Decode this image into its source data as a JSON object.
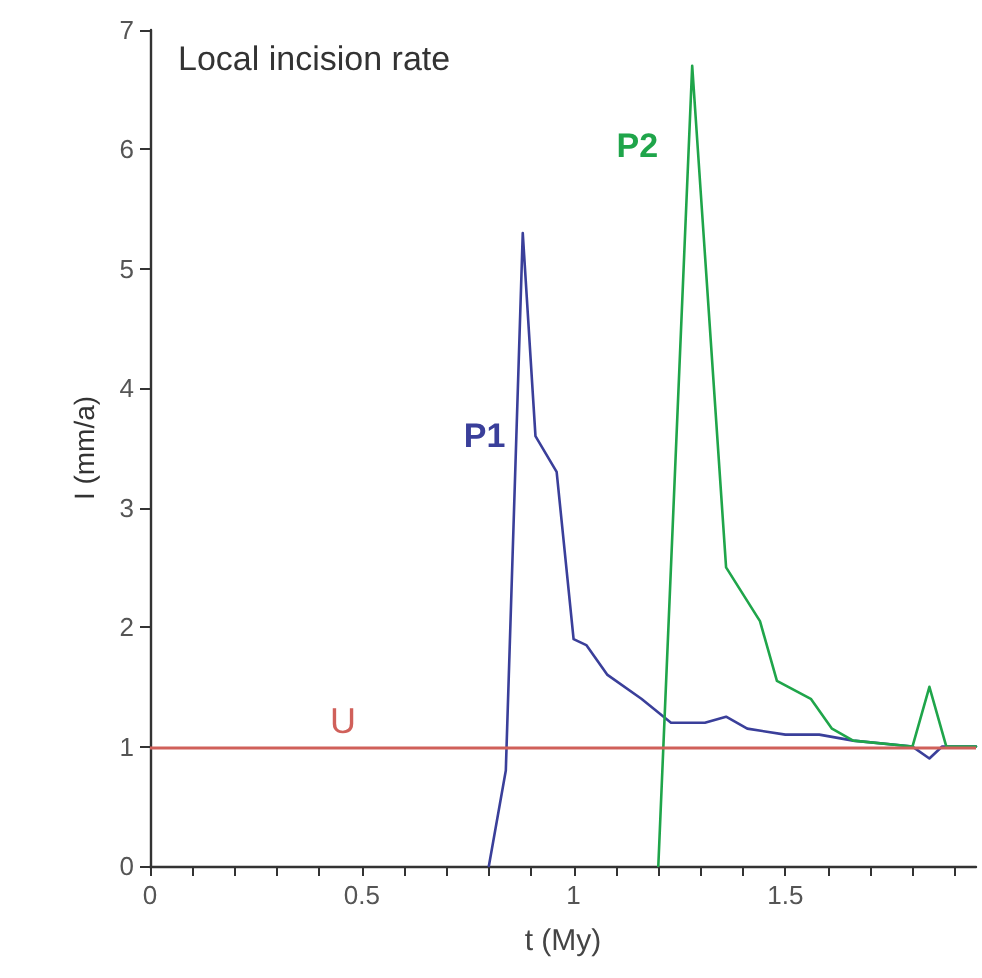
{
  "chart_data": {
    "type": "line",
    "title": "Local incision rate",
    "xlabel": "t (My)",
    "ylabel": "I (mm/a)",
    "xlim": [
      0,
      1.95
    ],
    "ylim": [
      0,
      7
    ],
    "xticks": [
      0,
      {
        "value": 0.1,
        "label": null
      },
      {
        "value": 0.2,
        "label": null
      },
      {
        "value": 0.3,
        "label": null
      },
      {
        "value": 0.4,
        "label": null
      },
      0.5,
      {
        "value": 0.6,
        "label": null
      },
      {
        "value": 0.7,
        "label": null
      },
      {
        "value": 0.8,
        "label": null
      },
      {
        "value": 0.9,
        "label": null
      },
      1,
      {
        "value": 1.1,
        "label": null
      },
      {
        "value": 1.2,
        "label": null
      },
      {
        "value": 1.3,
        "label": null
      },
      {
        "value": 1.4,
        "label": null
      },
      1.5,
      {
        "value": 1.6,
        "label": null
      },
      {
        "value": 1.7,
        "label": null
      },
      {
        "value": 1.8,
        "label": null
      },
      {
        "value": 1.9,
        "label": null
      }
    ],
    "yticks": [
      0,
      1,
      2,
      3,
      4,
      5,
      6,
      7
    ],
    "grid": false,
    "legend": false,
    "marker": "none",
    "line_style": "solid",
    "series": [
      {
        "name": "P1",
        "color": "#3a3f9a",
        "x": [
          0.8,
          0.84,
          0.88,
          0.91,
          0.96,
          1.0,
          1.03,
          1.08,
          1.16,
          1.23,
          1.31,
          1.36,
          1.41,
          1.5,
          1.58,
          1.66,
          1.8,
          1.84,
          1.87,
          1.95
        ],
        "values": [
          0,
          0.8,
          5.3,
          3.6,
          3.3,
          1.9,
          1.85,
          1.6,
          1.4,
          1.2,
          1.2,
          1.25,
          1.15,
          1.1,
          1.1,
          1.05,
          1.0,
          0.9,
          1.0,
          1.0
        ]
      },
      {
        "name": "P2",
        "color": "#1fa54a",
        "x": [
          1.2,
          1.28,
          1.36,
          1.44,
          1.48,
          1.56,
          1.61,
          1.66,
          1.8,
          1.84,
          1.88,
          1.95
        ],
        "values": [
          0,
          6.7,
          2.5,
          2.05,
          1.55,
          1.4,
          1.15,
          1.05,
          1.0,
          1.5,
          1.0,
          1.0
        ]
      }
    ],
    "ref_lines": [
      {
        "axis": "y",
        "value": 1,
        "label": "U",
        "color": "#d0605a"
      }
    ]
  }
}
